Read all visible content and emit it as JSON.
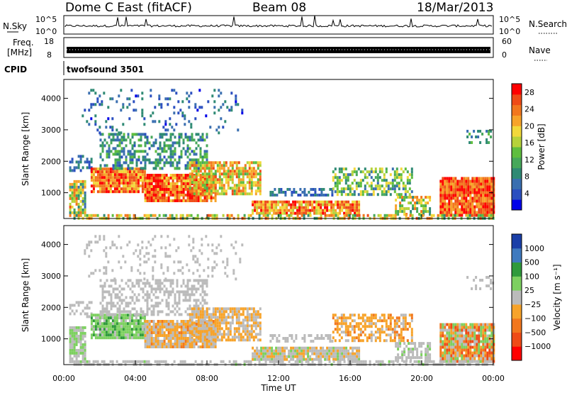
{
  "header": {
    "station": "Dome C East (fitACF)",
    "beam": "Beam 08",
    "date": "18/Mar/2013"
  },
  "meta_panels": {
    "nsky_label": "N.Sky",
    "nsearch_label": "N.Search",
    "freq_label_1": "Freq.",
    "freq_label_2": "[MHz]",
    "nave_label": "Nave",
    "cpid_label": "CPID",
    "cpid_value": "twofsound 3501",
    "noise_ticks": [
      "10^5",
      "10^0"
    ],
    "freq_left_ticks": [
      "18",
      "8"
    ],
    "nave_right_ticks": [
      "60",
      "0"
    ]
  },
  "colorbars": {
    "power": {
      "label": "Power [dB]",
      "ticks": [
        "28",
        "24",
        "20",
        "16",
        "12",
        "8",
        "4"
      ],
      "colors": [
        "#0000e8",
        "#2b4fc0",
        "#3a6fb0",
        "#2f8a74",
        "#46a85a",
        "#5fbe3e",
        "#b6d23a",
        "#f2d83a",
        "#f7a32a",
        "#f2771e",
        "#ef4b17",
        "#ff0000"
      ]
    },
    "velocity": {
      "label": "Velocity [m s⁻¹]",
      "ticks": [
        "1000",
        "500",
        "100",
        "25",
        "−25",
        "−100",
        "−500",
        "−1000"
      ],
      "colors": [
        "#ff0000",
        "#ef4b17",
        "#f2771e",
        "#f7a32a",
        "#bbbbbb",
        "#7dd060",
        "#2f9a3c",
        "#3f7abf",
        "#1a3fa8"
      ]
    }
  },
  "chart_data": [
    {
      "type": "heatmap",
      "name": "power",
      "ylabel": "Slant Range [km]",
      "xlabel": "",
      "x_ticks": [
        "00:00",
        "04:00",
        "08:00",
        "12:00",
        "16:00",
        "20:00",
        "00:00"
      ],
      "y_ticks": [
        "1000",
        "2000",
        "3000",
        "4000"
      ],
      "xlim": [
        0,
        24
      ],
      "ylim": [
        180,
        4600
      ],
      "colorbar_label": "Power [dB]",
      "colorbar_ticks": [
        28,
        24,
        20,
        16,
        12,
        8,
        4
      ],
      "colorbar_range": [
        0,
        30
      ],
      "regions": [
        {
          "t0": 0.3,
          "t1": 1.2,
          "r0": 300,
          "r1": 1400,
          "v0": 6,
          "v1": 26,
          "d": 0.8
        },
        {
          "t0": 0.3,
          "t1": 1.5,
          "r0": 1700,
          "r1": 2200,
          "v0": 3,
          "v1": 10,
          "d": 0.4
        },
        {
          "t0": 1.5,
          "t1": 4.5,
          "r0": 1000,
          "r1": 1800,
          "v0": 18,
          "v1": 30,
          "d": 0.95
        },
        {
          "t0": 2.0,
          "t1": 8.0,
          "r0": 1800,
          "r1": 2900,
          "v0": 4,
          "v1": 14,
          "d": 0.5
        },
        {
          "t0": 4.5,
          "t1": 8.5,
          "r0": 700,
          "r1": 1600,
          "v0": 18,
          "v1": 30,
          "d": 0.95
        },
        {
          "t0": 7.0,
          "t1": 11.0,
          "r0": 1000,
          "r1": 2000,
          "v0": 12,
          "v1": 26,
          "d": 0.8
        },
        {
          "t0": 10.5,
          "t1": 16.5,
          "r0": 300,
          "r1": 750,
          "v0": 16,
          "v1": 30,
          "d": 0.9
        },
        {
          "t0": 11.5,
          "t1": 15.0,
          "r0": 900,
          "r1": 1150,
          "v0": 3,
          "v1": 10,
          "d": 0.5
        },
        {
          "t0": 15.0,
          "t1": 19.5,
          "r0": 900,
          "r1": 1800,
          "v0": 6,
          "v1": 20,
          "d": 0.55
        },
        {
          "t0": 18.5,
          "t1": 20.5,
          "r0": 300,
          "r1": 900,
          "v0": 8,
          "v1": 24,
          "d": 0.6
        },
        {
          "t0": 21.0,
          "t1": 24.0,
          "r0": 300,
          "r1": 1500,
          "v0": 20,
          "v1": 30,
          "d": 0.95
        },
        {
          "t0": 1.0,
          "t1": 10.0,
          "r0": 2900,
          "r1": 4300,
          "v0": 2,
          "v1": 10,
          "d": 0.12
        },
        {
          "t0": 0.3,
          "t1": 24.0,
          "r0": 200,
          "r1": 320,
          "v0": 8,
          "v1": 26,
          "d": 0.6
        },
        {
          "t0": 22.5,
          "t1": 24.0,
          "r0": 2600,
          "r1": 3000,
          "v0": 6,
          "v1": 14,
          "d": 0.3
        }
      ]
    },
    {
      "type": "heatmap",
      "name": "velocity",
      "ylabel": "Slant Range [km]",
      "xlabel": "Time UT",
      "x_ticks": [
        "00:00",
        "04:00",
        "08:00",
        "12:00",
        "16:00",
        "20:00",
        "00:00"
      ],
      "y_ticks": [
        "1000",
        "2000",
        "3000",
        "4000"
      ],
      "xlim": [
        0,
        24
      ],
      "ylim": [
        180,
        4600
      ],
      "colorbar_label": "Velocity [m s⁻¹]",
      "colorbar_ticks": [
        1000,
        500,
        100,
        25,
        -25,
        -100,
        -500,
        -1000
      ],
      "colorbar_range": [
        -1000,
        1000
      ],
      "regions": [
        {
          "t0": 0.3,
          "t1": 1.2,
          "r0": 300,
          "r1": 1400,
          "v0": -50,
          "v1": 200,
          "d": 0.8
        },
        {
          "t0": 0.3,
          "t1": 1.5,
          "r0": 1700,
          "r1": 2200,
          "v0": -30,
          "v1": 30,
          "d": 0.4
        },
        {
          "t0": 1.5,
          "t1": 4.5,
          "r0": 1000,
          "r1": 1800,
          "v0": 50,
          "v1": 400,
          "d": 0.95
        },
        {
          "t0": 2.0,
          "t1": 8.0,
          "r0": 1800,
          "r1": 2900,
          "v0": -80,
          "v1": 80,
          "d": 0.5
        },
        {
          "t0": 4.5,
          "t1": 8.5,
          "r0": 700,
          "r1": 1600,
          "v0": -400,
          "v1": 100,
          "d": 0.95
        },
        {
          "t0": 7.0,
          "t1": 11.0,
          "r0": 1000,
          "r1": 2000,
          "v0": -300,
          "v1": 50,
          "d": 0.8
        },
        {
          "t0": 10.5,
          "t1": 16.5,
          "r0": 300,
          "r1": 750,
          "v0": -200,
          "v1": 200,
          "d": 0.9
        },
        {
          "t0": 11.5,
          "t1": 15.0,
          "r0": 900,
          "r1": 1150,
          "v0": -20,
          "v1": 20,
          "d": 0.5
        },
        {
          "t0": 15.0,
          "t1": 19.5,
          "r0": 900,
          "r1": 1800,
          "v0": -400,
          "v1": 0,
          "d": 0.55
        },
        {
          "t0": 18.5,
          "t1": 20.5,
          "r0": 300,
          "r1": 900,
          "v0": -100,
          "v1": 150,
          "d": 0.6
        },
        {
          "t0": 21.0,
          "t1": 24.0,
          "r0": 300,
          "r1": 1500,
          "v0": -700,
          "v1": 300,
          "d": 0.95
        },
        {
          "t0": 1.0,
          "t1": 10.0,
          "r0": 2900,
          "r1": 4300,
          "v0": -30,
          "v1": 60,
          "d": 0.12
        },
        {
          "t0": 0.3,
          "t1": 24.0,
          "r0": 200,
          "r1": 320,
          "v0": -40,
          "v1": 120,
          "d": 0.6
        },
        {
          "t0": 22.5,
          "t1": 24.0,
          "r0": 2600,
          "r1": 3000,
          "v0": -40,
          "v1": 40,
          "d": 0.3
        }
      ]
    }
  ]
}
